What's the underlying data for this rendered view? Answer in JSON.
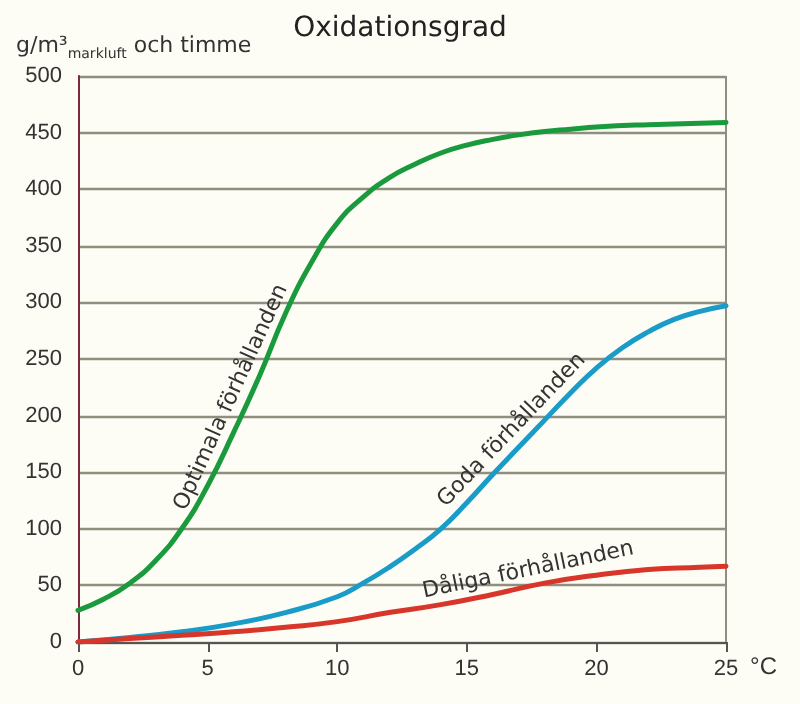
{
  "chart_data": {
    "type": "line",
    "title": "Oxidationsgrad",
    "ylabel": "g/m³$_{markluft}$ och timme",
    "xlabel": "°C",
    "xlim": [
      0,
      25
    ],
    "xticks": [
      0,
      5,
      10,
      15,
      20,
      25
    ],
    "ylim": [
      0,
      500
    ],
    "yticks": [
      0,
      50,
      100,
      150,
      200,
      250,
      300,
      350,
      400,
      450,
      500
    ],
    "grid": "y",
    "marker": "none",
    "line_style": "solid",
    "series": [
      {
        "color": "#1a9a3c",
        "x": [
          0,
          1,
          2,
          3,
          4,
          5,
          6,
          7,
          8,
          9,
          10,
          11,
          12,
          13,
          14,
          15,
          16,
          17,
          18,
          19,
          20,
          22,
          25
        ],
        "values": [
          28,
          38,
          52,
          72,
          100,
          138,
          185,
          235,
          290,
          335,
          370,
          393,
          410,
          422,
          432,
          439,
          444,
          448,
          451,
          453,
          455,
          457,
          459
        ]
      },
      {
        "color": "#1a9cc8",
        "x": [
          0,
          2,
          4,
          6,
          8,
          10,
          11,
          12,
          13,
          14,
          15,
          16,
          17,
          18,
          19,
          20,
          21,
          22,
          23,
          24,
          25
        ],
        "values": [
          0,
          4,
          9,
          16,
          26,
          40,
          52,
          66,
          82,
          100,
          123,
          148,
          172,
          196,
          220,
          242,
          260,
          274,
          285,
          292,
          297
        ]
      },
      {
        "color": "#d8362a",
        "x": [
          0,
          2,
          4,
          6,
          8,
          10,
          12,
          14,
          16,
          18,
          20,
          22,
          24,
          25
        ],
        "values": [
          0,
          3,
          6,
          9,
          13,
          18,
          26,
          33,
          42,
          52,
          59,
          64,
          66,
          67
        ]
      }
    ],
    "annotations": [
      {
        "text": "Optimala förhållanden",
        "x": 6.5,
        "y": 210
      },
      {
        "text": "Goda förhållanden",
        "x": 17.2,
        "y": 177
      },
      {
        "text": "Dåliga förhållanden",
        "x": 17.5,
        "y": 49
      }
    ]
  }
}
